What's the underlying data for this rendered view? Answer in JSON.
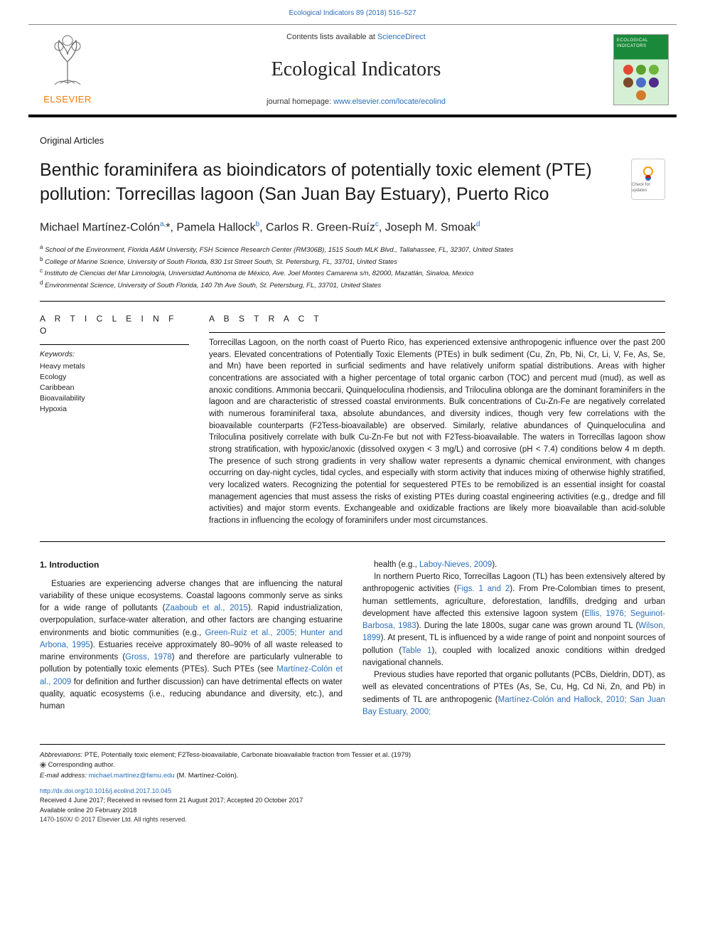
{
  "header": {
    "journal_issue_link": "Ecological Indicators 89 (2018) 516–527",
    "contents_line_pre": "Contents lists available at ",
    "contents_link": "ScienceDirect",
    "journal_name": "Ecological Indicators",
    "homepage_pre": "journal homepage: ",
    "homepage_url": "www.elsevier.com/locate/ecolind",
    "publisher_label": "ELSEVIER",
    "cover_title": "ECOLOGICAL INDICATORS",
    "cover_dot_colors": [
      "#e24a33",
      "#5aa02c",
      "#6fb53f",
      "#7b4a2a",
      "#4b6ecb",
      "#532a8a",
      "#d27b2a"
    ]
  },
  "article": {
    "type": "Original Articles",
    "title": "Benthic foraminifera as bioindicators of potentially toxic element (PTE) pollution: Torrecillas lagoon (San Juan Bay Estuary), Puerto Rico",
    "check_badge": "Check for updates",
    "authors_html": "Michael Martínez-Colón<sup>a,</sup>*, Pamela Hallock<sup>b</sup>, Carlos R. Green-Ruíz<sup>c</sup>, Joseph M. Smoak<sup>d</sup>",
    "affiliations": [
      {
        "sup": "a",
        "text": "School of the Environment, Florida A&M University, FSH Science Research Center (RM306B), 1515 South MLK Blvd., Tallahassee, FL, 32307, United States"
      },
      {
        "sup": "b",
        "text": "College of Marine Science, University of South Florida, 830 1st Street South, St. Petersburg, FL, 33701, United States"
      },
      {
        "sup": "c",
        "text": "Instituto de Ciencias del Mar Limnología, Universidad Autónoma de México, Ave. Joel Montes Camarena s/n, 82000, Mazatlán, Sinaloa, Mexico"
      },
      {
        "sup": "d",
        "text": "Environmental Science, University of South Florida, 140 7th Ave South, St. Petersburg, FL, 33701, United States"
      }
    ]
  },
  "article_info": {
    "heading": "A R T I C L E  I N F O",
    "keywords_label": "Keywords:",
    "keywords": [
      "Heavy metals",
      "Ecology",
      "Caribbean",
      "Bioavailability",
      "Hypoxia"
    ]
  },
  "abstract": {
    "heading": "A B S T R A C T",
    "text": "Torrecillas Lagoon, on the north coast of Puerto Rico, has experienced extensive anthropogenic influence over the past 200 years. Elevated concentrations of Potentially Toxic Elements (PTEs) in bulk sediment (Cu, Zn, Pb, Ni, Cr, Li, V, Fe, As, Se, and Mn) have been reported in surficial sediments and have relatively uniform spatial distributions. Areas with higher concentrations are associated with a higher percentage of total organic carbon (TOC) and percent mud (mud), as well as anoxic conditions. Ammonia beccarii, Quinqueloculina rhodiensis, and Triloculina oblonga are the dominant foraminifers in the lagoon and are characteristic of stressed coastal environments. Bulk concentrations of Cu-Zn-Fe are negatively correlated with numerous foraminiferal taxa, absolute abundances, and diversity indices, though very few correlations with the bioavailable counterparts (F2Tess-bioavailable) are observed. Similarly, relative abundances of Quinqueloculina and Triloculina positively correlate with bulk Cu-Zn-Fe but not with F2Tess-bioavailable. The waters in Torrecillas lagoon show strong stratification, with hypoxic/anoxic (dissolved oxygen < 3 mg/L) and corrosive (pH < 7.4) conditions below 4 m depth. The presence of such strong gradients in very shallow water represents a dynamic chemical environment, with changes occurring on day-night cycles, tidal cycles, and especially with storm activity that induces mixing of otherwise highly stratified, very localized waters. Recognizing the potential for sequestered PTEs to be remobilized is an essential insight for coastal management agencies that must assess the risks of existing PTEs during coastal engineering activities (e.g., dredge and fill activities) and major storm events. Exchangeable and oxidizable fractions are likely more bioavailable than acid-soluble fractions in influencing the ecology of foraminifers under most circumstances."
  },
  "body": {
    "intro_heading": "1. Introduction",
    "paragraphs": [
      "Estuaries are experiencing adverse changes that are influencing the natural variability of these unique ecosystems. Coastal lagoons commonly serve as sinks for a wide range of pollutants (<a>Zaaboub et al., 2015</a>). Rapid industrialization, overpopulation, surface-water alteration, and other factors are changing estuarine environments and biotic communities (e.g., <a>Green-Ruíz et al., 2005; Hunter and Arbona, 1995</a>). Estuaries receive approximately 80–90% of all waste released to marine environments (<a>Gross, 1978</a>) and therefore are particularly vulnerable to pollution by potentially toxic elements (PTEs). Such PTEs (see <a>Martínez-Colón et al., 2009</a> for definition and further discussion) can have detrimental effects on water quality, aquatic ecosystems (i.e., reducing abundance and diversity, etc.), and human",
      "health (e.g., <a>Laboy-Nieves, 2009</a>).",
      "In northern Puerto Rico, Torrecillas Lagoon (TL) has been extensively altered by anthropogenic activities (<a>Figs. 1 and 2</a>). From Pre-Colombian times to present, human settlements, agriculture, deforestation, landfills, dredging and urban development have affected this extensive lagoon system (<a>Ellis, 1976; Seguinot-Barbosa, 1983</a>). During the late 1800s, sugar cane was grown around TL (<a>Wilson, 1899</a>). At present, TL is influenced by a wide range of point and nonpoint sources of pollution (<a>Table 1</a>), coupled with localized anoxic conditions within dredged navigational channels.",
      "Previous studies have reported that organic pollutants (PCBs, Dieldrin, DDT), as well as elevated concentrations of PTEs (As, Se, Cu, Hg, Cd Ni, Zn, and Pb) in sediments of TL are anthropogenic (<a>Martínez-Colón and Hallock, 2010; San Juan Bay Estuary, 2000;</a>"
    ]
  },
  "footer": {
    "abbrev_label": "Abbreviations:",
    "abbrev_text": " PTE, Potentially toxic element; F2Tess-bioavailable, Carbonate bioavailable fraction from Tessier et al. (1979)",
    "corresponding": "Corresponding author.",
    "email_label": "E-mail address:",
    "email": "michael.martinez@famu.edu",
    "email_name": " (M. Martínez-Colón).",
    "doi": "http://dx.doi.org/10.1016/j.ecolind.2017.10.045",
    "history": "Received 4 June 2017; Received in revised form 21 August 2017; Accepted 20 October 2017",
    "online": "Available online 20 February 2018",
    "issn": "1470-160X/ © 2017 Elsevier Ltd. All rights reserved."
  },
  "colors": {
    "link": "#2a6ebb",
    "orange": "#ff7a00",
    "text": "#1a1a1a"
  }
}
